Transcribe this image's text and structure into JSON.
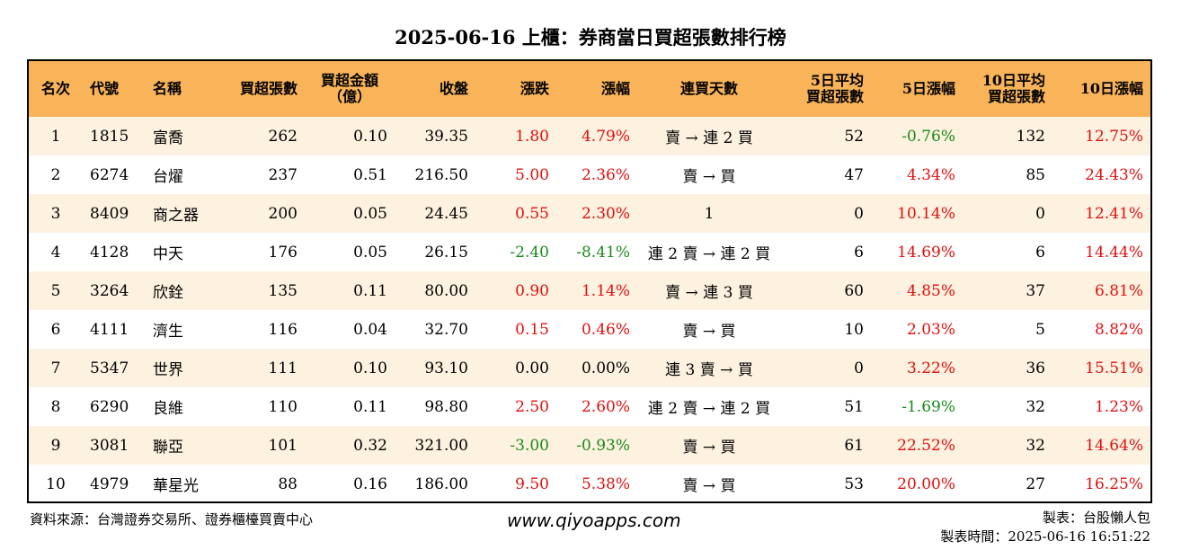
{
  "title": "2025-06-16 上櫃：券商當日買超張數排行榜",
  "headers": [
    "名次",
    "代號",
    "名稱",
    "買超張數",
    "買超金額\n（億）",
    "收盤",
    "漲跌",
    "漲幅",
    "連買天數",
    "5日平均\n買超張數",
    "5日漲幅",
    "10日平均\n買超張數",
    "10日漲幅"
  ],
  "rows": [
    {
      "rank": "1",
      "code": "1815",
      "name": "富喬",
      "shares": "262",
      "amount": "0.10",
      "close": "39.35",
      "change": "1.80",
      "pct": "4.79%",
      "streak": "賣 → 連 2 買",
      "avg5": "52",
      "pct5": "-0.76%",
      "avg10": "132",
      "pct10": "12.75%"
    },
    {
      "rank": "2",
      "code": "6274",
      "name": "台燿",
      "shares": "237",
      "amount": "0.51",
      "close": "216.50",
      "change": "5.00",
      "pct": "2.36%",
      "streak": "賣 → 買",
      "avg5": "47",
      "pct5": "4.34%",
      "avg10": "85",
      "pct10": "24.43%"
    },
    {
      "rank": "3",
      "code": "8409",
      "name": "商之器",
      "shares": "200",
      "amount": "0.05",
      "close": "24.45",
      "change": "0.55",
      "pct": "2.30%",
      "streak": "1",
      "avg5": "0",
      "pct5": "10.14%",
      "avg10": "0",
      "pct10": "12.41%"
    },
    {
      "rank": "4",
      "code": "4128",
      "name": "中天",
      "shares": "176",
      "amount": "0.05",
      "close": "26.15",
      "change": "-2.40",
      "pct": "-8.41%",
      "streak": "連 2 賣 → 連 2 買",
      "avg5": "6",
      "pct5": "14.69%",
      "avg10": "6",
      "pct10": "14.44%"
    },
    {
      "rank": "5",
      "code": "3264",
      "name": "欣銓",
      "shares": "135",
      "amount": "0.11",
      "close": "80.00",
      "change": "0.90",
      "pct": "1.14%",
      "streak": "賣 → 連 3 買",
      "avg5": "60",
      "pct5": "4.85%",
      "avg10": "37",
      "pct10": "6.81%"
    },
    {
      "rank": "6",
      "code": "4111",
      "name": "濟生",
      "shares": "116",
      "amount": "0.04",
      "close": "32.70",
      "change": "0.15",
      "pct": "0.46%",
      "streak": "賣 → 買",
      "avg5": "10",
      "pct5": "2.03%",
      "avg10": "5",
      "pct10": "8.82%"
    },
    {
      "rank": "7",
      "code": "5347",
      "name": "世界",
      "shares": "111",
      "amount": "0.10",
      "close": "93.10",
      "change": "0.00",
      "pct": "0.00%",
      "streak": "連 3 賣 → 買",
      "avg5": "0",
      "pct5": "3.22%",
      "avg10": "36",
      "pct10": "15.51%"
    },
    {
      "rank": "8",
      "code": "6290",
      "name": "良維",
      "shares": "110",
      "amount": "0.11",
      "close": "98.80",
      "change": "2.50",
      "pct": "2.60%",
      "streak": "連 2 賣 → 連 2 買",
      "avg5": "51",
      "pct5": "-1.69%",
      "avg10": "32",
      "pct10": "1.23%"
    },
    {
      "rank": "9",
      "code": "3081",
      "name": "聯亞",
      "shares": "101",
      "amount": "0.32",
      "close": "321.00",
      "change": "-3.00",
      "pct": "-0.93%",
      "streak": "賣 → 買",
      "avg5": "61",
      "pct5": "22.52%",
      "avg10": "32",
      "pct10": "14.64%"
    },
    {
      "rank": "10",
      "code": "4979",
      "name": "華星光",
      "shares": "88",
      "amount": "0.16",
      "close": "186.00",
      "change": "9.50",
      "pct": "5.38%",
      "streak": "賣 → 買",
      "avg5": "53",
      "pct5": "20.00%",
      "avg10": "27",
      "pct10": "16.25%"
    }
  ],
  "footer": {
    "source": "資料來源：台灣證券交易所、證券櫃檯買賣中心",
    "website": "www.qiyoapps.com",
    "maker": "製表：台股懶人包",
    "time": "製表時間：2025-06-16 16:51:22"
  },
  "colors": {
    "header_bg": "#f9b45a",
    "row_alt_bg": "#fdf1df",
    "up": "#e01010",
    "down": "#1a8a1a"
  }
}
